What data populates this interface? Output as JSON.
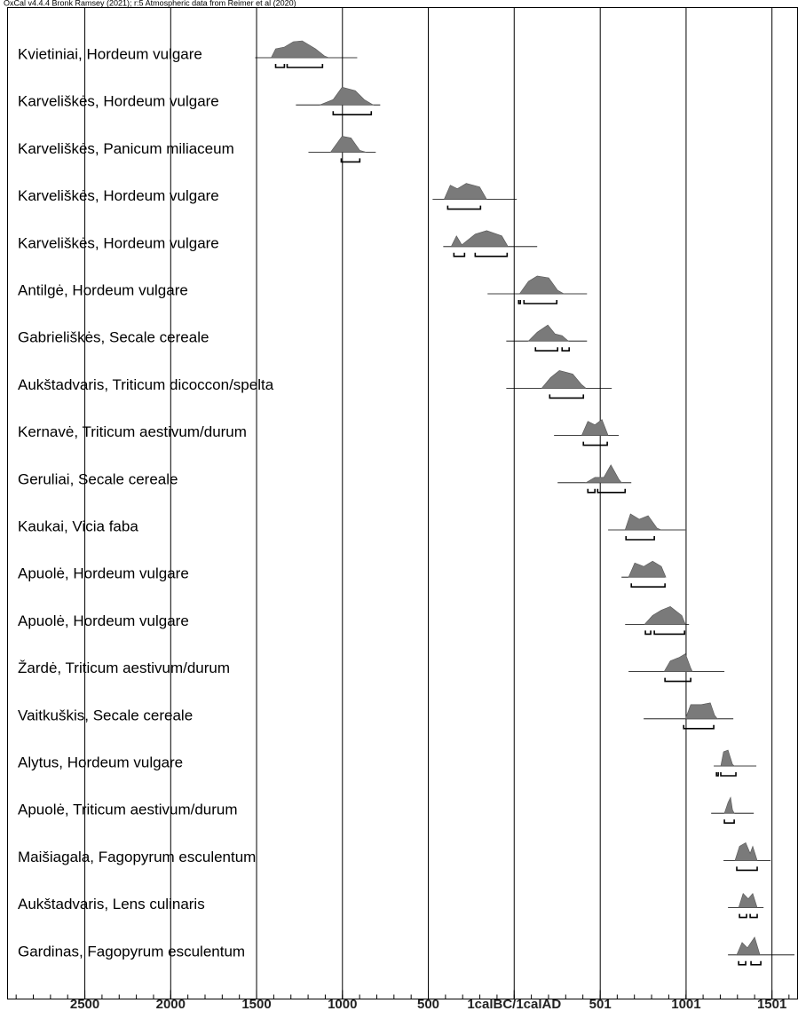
{
  "chart_data": {
    "type": "multiplot",
    "title": "OxCal v4.4.4 Bronk Ramsey (2021); r:5 Atmospheric data from Reimer et al (2020)",
    "xlim": [
      -2950,
      1650
    ],
    "xticks": [
      {
        "value": -2500,
        "label": "2500"
      },
      {
        "value": -2000,
        "label": "2000"
      },
      {
        "value": -1500,
        "label": "1500"
      },
      {
        "value": -1000,
        "label": "1000"
      },
      {
        "value": -500,
        "label": "500"
      },
      {
        "value": 0,
        "label": "1calBC/1calAD"
      },
      501,
      1001,
      1501
    ],
    "grid": true,
    "color": "#7a7a7a",
    "samples": [
      {
        "name": "Kvietiniai, Hordeum vulgare",
        "extent": [
          -1508,
          -914
        ],
        "density_x": [
          -1415,
          -1389,
          -1338,
          -1286,
          -1234,
          -1157,
          -1105,
          -1079
        ],
        "density_h": [
          0,
          0.5,
          0.6,
          0.9,
          0.95,
          0.5,
          0.1,
          0
        ],
        "hpd": [
          [
            -1389,
            -1338
          ],
          [
            -1322,
            -1116
          ]
        ]
      },
      {
        "name": "Karveliškės, Hordeum vulgare",
        "extent": [
          -1271,
          -780
        ],
        "density_x": [
          -1131,
          -1054,
          -1002,
          -925,
          -873,
          -821
        ],
        "density_h": [
          0,
          0.3,
          1,
          0.8,
          0.3,
          0
        ],
        "hpd": [
          [
            -1054,
            -832
          ]
        ]
      },
      {
        "name": "Karveliškės, Panicum miliaceum",
        "extent": [
          -1198,
          -806
        ],
        "density_x": [
          -1069,
          -1002,
          -950,
          -899,
          -863
        ],
        "density_h": [
          0,
          0.9,
          0.8,
          0.1,
          0
        ],
        "hpd": [
          [
            -1007,
            -899
          ]
        ]
      },
      {
        "name": "Karveliškės, Hordeum vulgare",
        "extent": [
          -475,
          15
        ],
        "density_x": [
          -408,
          -372,
          -331,
          -279,
          -201,
          -160
        ],
        "density_h": [
          0,
          0.8,
          0.6,
          0.9,
          0.7,
          0
        ],
        "hpd": [
          [
            -387,
            -196
          ]
        ]
      },
      {
        "name": "Karveliškės, Hordeum vulgare",
        "extent": [
          -413,
          134
        ],
        "density_x": [
          -367,
          -336,
          -305,
          -227,
          -160,
          -72,
          -36
        ],
        "density_h": [
          0,
          0.6,
          0.1,
          0.7,
          0.9,
          0.6,
          0
        ],
        "hpd": [
          [
            -351,
            -289
          ],
          [
            -227,
            -41
          ]
        ]
      },
      {
        "name": "Antilgė, Hordeum vulgare",
        "extent": [
          -155,
          424
        ],
        "density_x": [
          31,
          83,
          134,
          201,
          253,
          289
        ],
        "density_h": [
          0,
          0.7,
          1,
          0.9,
          0.2,
          0
        ],
        "hpd": [
          [
            26,
            36
          ],
          [
            57,
            248
          ]
        ]
      },
      {
        "name": "Gabrieliškės, Secale cereale",
        "extent": [
          -46,
          424
        ],
        "density_x": [
          83,
          134,
          196,
          238,
          279,
          315
        ],
        "density_h": [
          0,
          0.5,
          0.9,
          0.4,
          0.3,
          0
        ],
        "hpd": [
          [
            124,
            253
          ],
          [
            279,
            320
          ]
        ]
      },
      {
        "name": "Aukštadvaris, Triticum dicoccon/spelta",
        "extent": [
          -46,
          568
        ],
        "density_x": [
          160,
          212,
          263,
          341,
          393,
          418
        ],
        "density_h": [
          0,
          0.6,
          1,
          0.8,
          0.2,
          0
        ],
        "hpd": [
          [
            207,
            403
          ]
        ]
      },
      {
        "name": "Kernavė, Triticum aestivum/durum",
        "extent": [
          232,
          609
        ],
        "density_x": [
          393,
          429,
          470,
          511,
          547
        ],
        "density_h": [
          0,
          0.8,
          0.6,
          0.9,
          0
        ],
        "hpd": [
          [
            403,
            542
          ]
        ]
      },
      {
        "name": "Geruliai, Secale cereale",
        "extent": [
          253,
          682
        ],
        "density_x": [
          418,
          470,
          522,
          563,
          609,
          625
        ],
        "density_h": [
          0,
          0.3,
          0.3,
          1,
          0.2,
          0
        ],
        "hpd": [
          [
            429,
            470
          ],
          [
            486,
            646
          ]
        ]
      },
      {
        "name": "Kaukai, Vicia faba",
        "extent": [
          547,
          997
        ],
        "density_x": [
          646,
          677,
          728,
          780,
          832,
          857
        ],
        "density_h": [
          0,
          0.9,
          0.6,
          0.8,
          0.1,
          0
        ],
        "hpd": [
          [
            651,
            816
          ]
        ]
      },
      {
        "name": "Apuolė, Hordeum vulgare",
        "extent": [
          625,
          878
        ],
        "density_x": [
          666,
          702,
          754,
          806,
          857,
          883
        ],
        "density_h": [
          0,
          0.8,
          0.6,
          0.9,
          0.6,
          0
        ],
        "hpd": [
          [
            682,
            878
          ]
        ]
      },
      {
        "name": "Apuolė, Hordeum vulgare",
        "extent": [
          646,
          1018
        ],
        "density_x": [
          759,
          806,
          857,
          909,
          976,
          997
        ],
        "density_h": [
          0,
          0.5,
          0.8,
          1,
          0.5,
          0
        ],
        "hpd": [
          [
            764,
            795
          ],
          [
            816,
            992
          ]
        ]
      },
      {
        "name": "Žardė, Triticum aestivum/durum",
        "extent": [
          666,
          1224
        ],
        "density_x": [
          873,
          909,
          961,
          997,
          1028,
          1038
        ],
        "density_h": [
          0,
          0.6,
          0.8,
          1,
          0.2,
          0
        ],
        "hpd": [
          [
            878,
            1028
          ]
        ]
      },
      {
        "name": "Vaitkuškis, Secale cereale",
        "extent": [
          754,
          1276
        ],
        "density_x": [
          997,
          1028,
          1090,
          1142,
          1167,
          1183
        ],
        "density_h": [
          0,
          0.8,
          0.8,
          0.9,
          0.2,
          0
        ],
        "hpd": [
          [
            987,
            1162
          ]
        ]
      },
      {
        "name": "Alytus, Hordeum vulgare",
        "extent": [
          1162,
          1410
        ],
        "density_x": [
          1203,
          1219,
          1245,
          1271,
          1281
        ],
        "density_h": [
          0,
          0.8,
          0.9,
          0.1,
          0
        ],
        "hpd": [
          [
            1178,
            1188
          ],
          [
            1203,
            1291
          ]
        ]
      },
      {
        "name": "Apuolė, Triticum aestivum/durum",
        "extent": [
          1147,
          1395
        ],
        "density_x": [
          1224,
          1245,
          1260,
          1271,
          1281
        ],
        "density_h": [
          0,
          0.6,
          0.9,
          0.2,
          0
        ],
        "hpd": [
          [
            1224,
            1281
          ]
        ]
      },
      {
        "name": "Maišiagala, Fagopyrum esculentum",
        "extent": [
          1219,
          1493
        ],
        "density_x": [
          1286,
          1312,
          1348,
          1374,
          1389,
          1415
        ],
        "density_h": [
          0,
          0.8,
          1,
          0.4,
          0.8,
          0
        ],
        "hpd": [
          [
            1296,
            1415
          ]
        ]
      },
      {
        "name": "Aukštadvaris, Lens culinaris",
        "extent": [
          1245,
          1452
        ],
        "density_x": [
          1307,
          1333,
          1363,
          1389,
          1415
        ],
        "density_h": [
          0,
          0.8,
          0.5,
          0.8,
          0
        ],
        "hpd": [
          [
            1312,
            1353
          ],
          [
            1374,
            1415
          ]
        ]
      },
      {
        "name": "Gardinas, Fagopyrum esculentum",
        "extent": [
          1245,
          1632
        ],
        "density_x": [
          1296,
          1327,
          1358,
          1400,
          1431
        ],
        "density_h": [
          0,
          0.7,
          0.4,
          1,
          0
        ],
        "hpd": [
          [
            1307,
            1348
          ],
          [
            1379,
            1436
          ]
        ]
      }
    ]
  }
}
